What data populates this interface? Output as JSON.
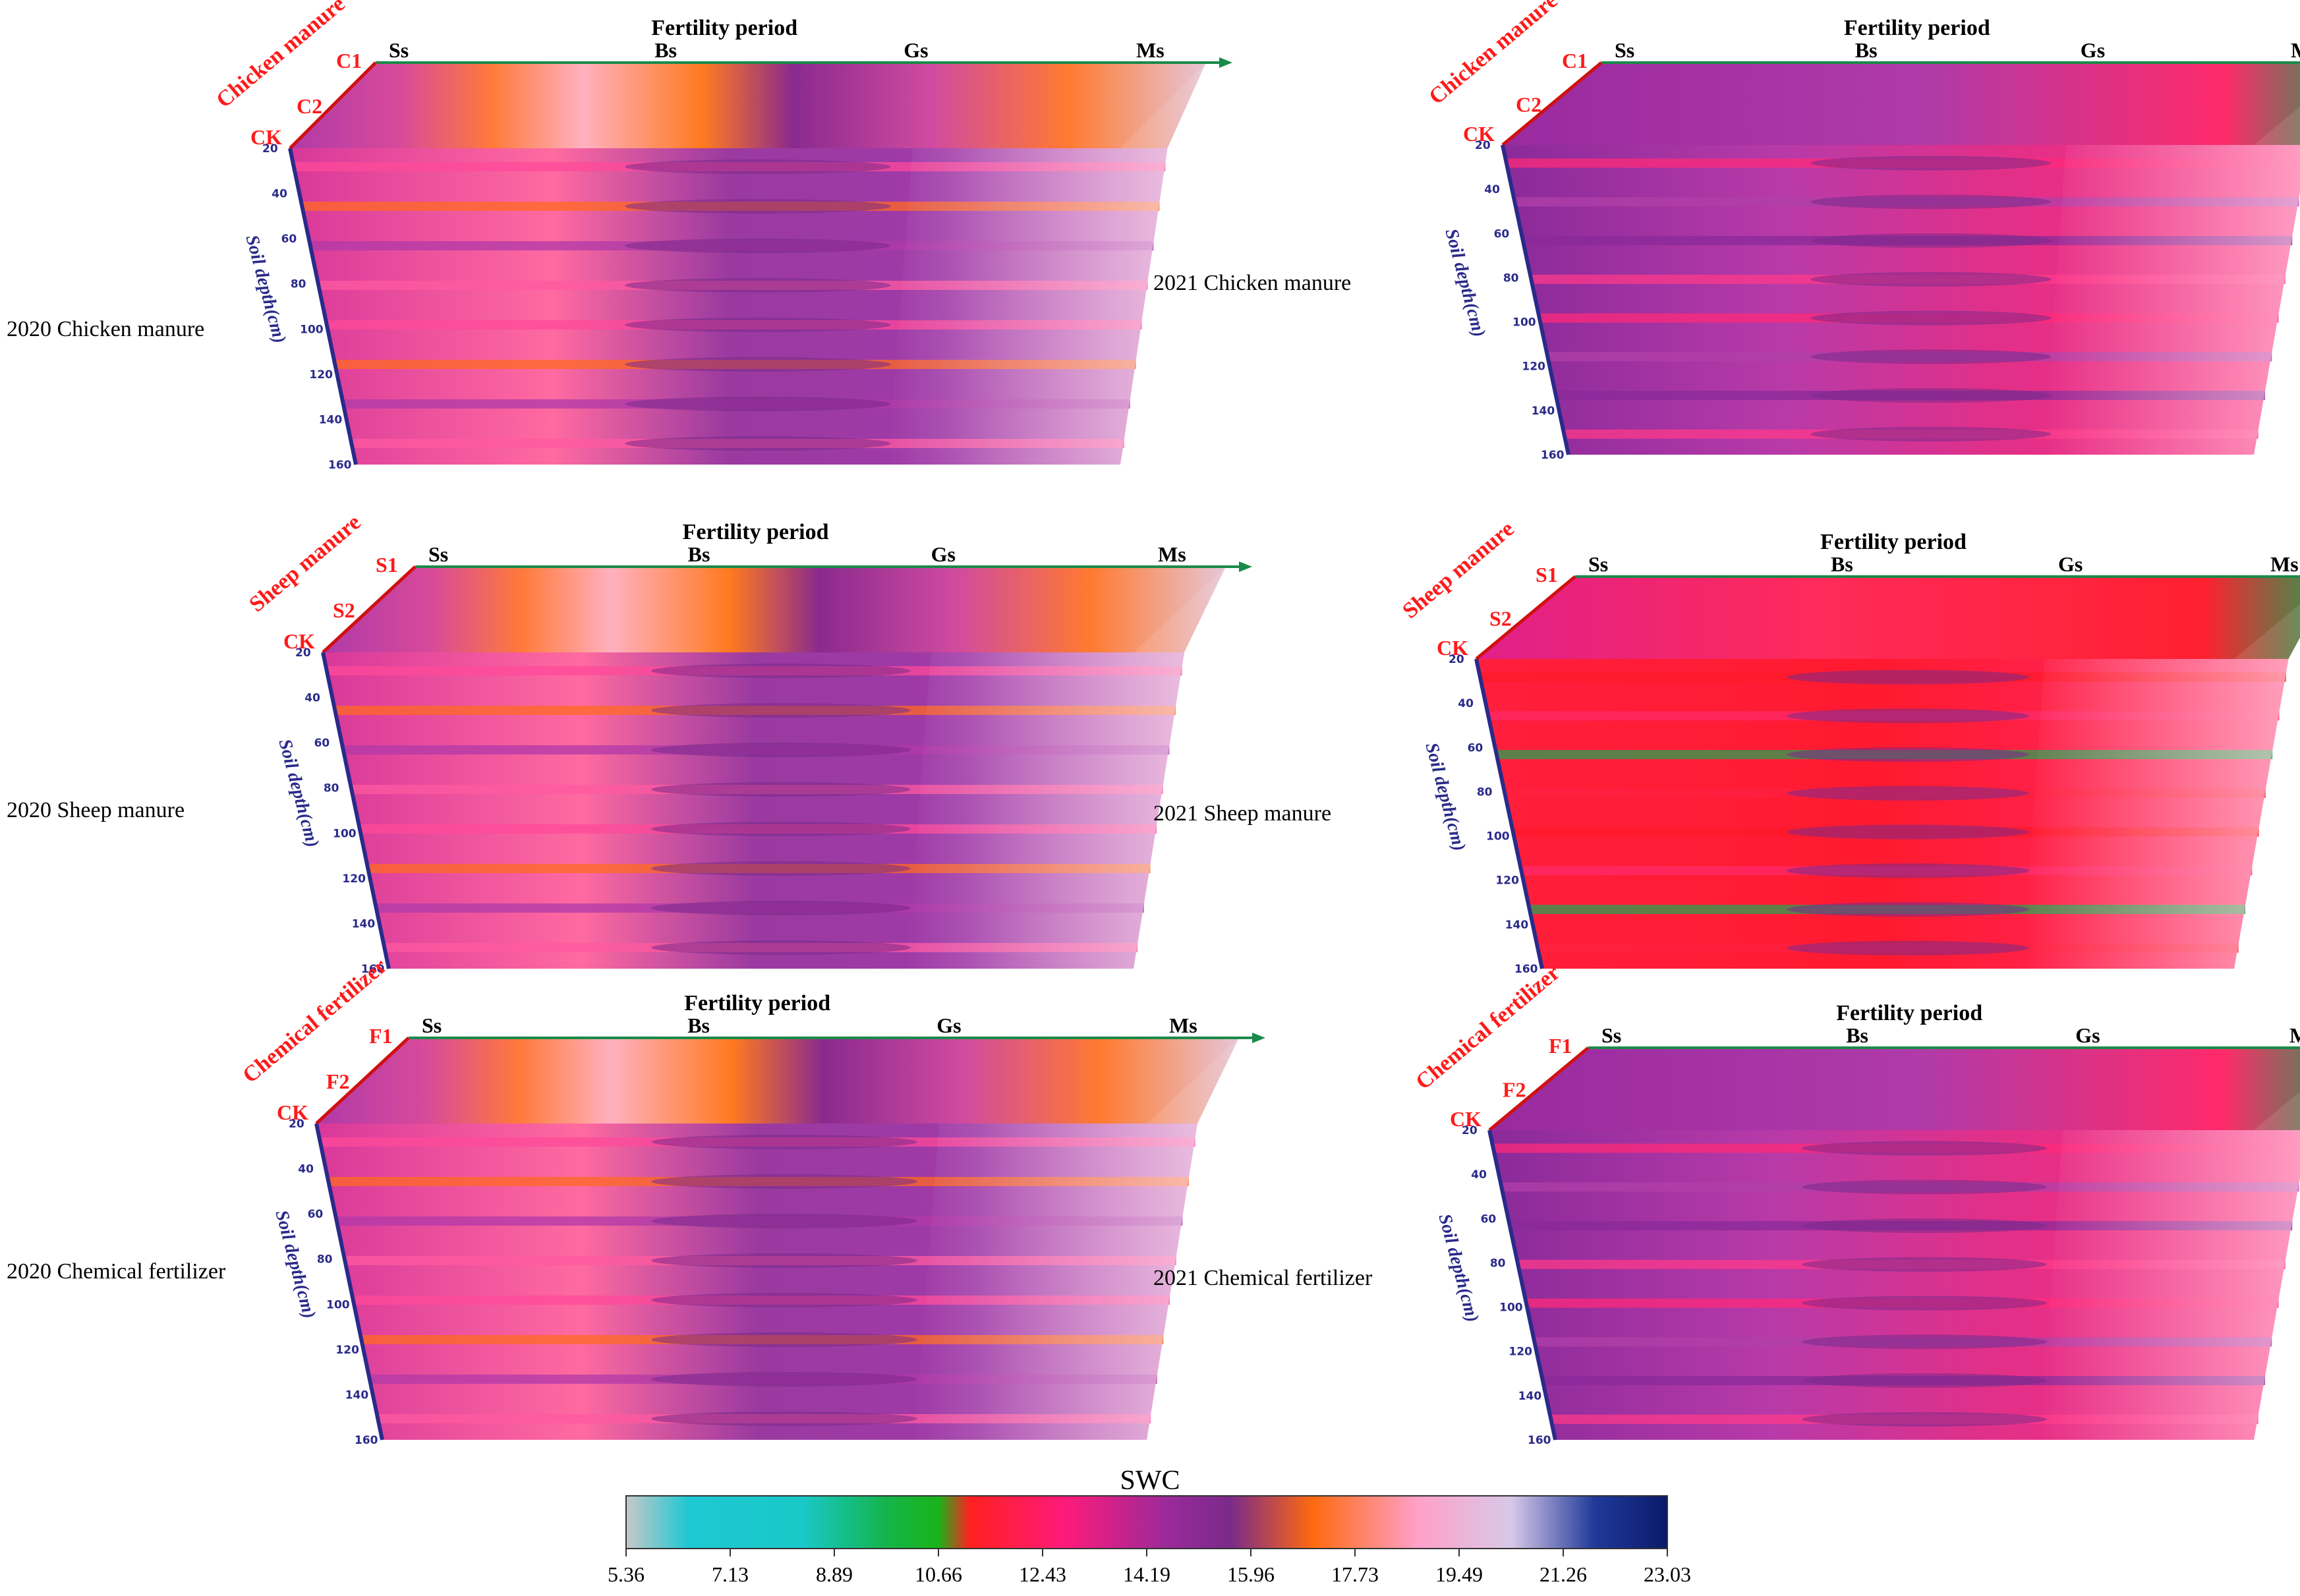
{
  "chart_data": {
    "type": "heatmap",
    "title": "",
    "variable": "SWC",
    "xlabel": "Fertility period",
    "ylabel": "Soil depth(cm)",
    "x_categories": [
      "Ss",
      "Bs",
      "Gs",
      "Ms"
    ],
    "depth_ticks": [
      "20",
      "40",
      "60",
      "80",
      "100",
      "120",
      "140",
      "160"
    ],
    "colorbar": {
      "title": "SWC",
      "min": 5.36,
      "max": 23.03,
      "ticks": [
        "5.36",
        "7.13",
        "8.89",
        "10.66",
        "12.43",
        "14.19",
        "15.96",
        "17.73",
        "19.49",
        "21.26",
        "23.03"
      ],
      "colors": [
        "#c8c8c8",
        "#1ec8d2",
        "#19c8c8",
        "#14b44b",
        "#19b419",
        "#ff2020",
        "#ff1a7a",
        "#9a2a9a",
        "#7a2a8a",
        "#ff6a10",
        "#ffa0c8",
        "#d8c8e8",
        "#203a9a",
        "#0a1a6a"
      ]
    },
    "panels": [
      {
        "label": "2020 Chicken manure",
        "treatment": "Chicken manure",
        "levels": [
          "C1",
          "C2",
          "CK"
        ],
        "palette": "2020"
      },
      {
        "label": "2021 Chicken manure",
        "treatment": "Chicken manure",
        "levels": [
          "C1",
          "C2",
          "CK"
        ],
        "palette": "2021a"
      },
      {
        "label": "2020 Sheep manure",
        "treatment": "Sheep manure",
        "levels": [
          "S1",
          "S2",
          "CK"
        ],
        "palette": "2020"
      },
      {
        "label": "2021 Sheep manure",
        "treatment": "Sheep manure",
        "levels": [
          "S1",
          "S2",
          "CK"
        ],
        "palette": "2021b"
      },
      {
        "label": "2020 Chemical fertilizer",
        "treatment": "Chemical fertilizer",
        "levels": [
          "F1",
          "F2",
          "CK"
        ],
        "palette": "2020"
      },
      {
        "label": "2021 Chemical fertilizer",
        "treatment": "Chemical fertilizer",
        "levels": [
          "F1",
          "F2",
          "CK"
        ],
        "palette": "2021a"
      }
    ]
  },
  "colors": {
    "axis_depth": "#2a2a8a",
    "axis_period": "#1a8a4a",
    "treatment_axis": "#d01010"
  }
}
